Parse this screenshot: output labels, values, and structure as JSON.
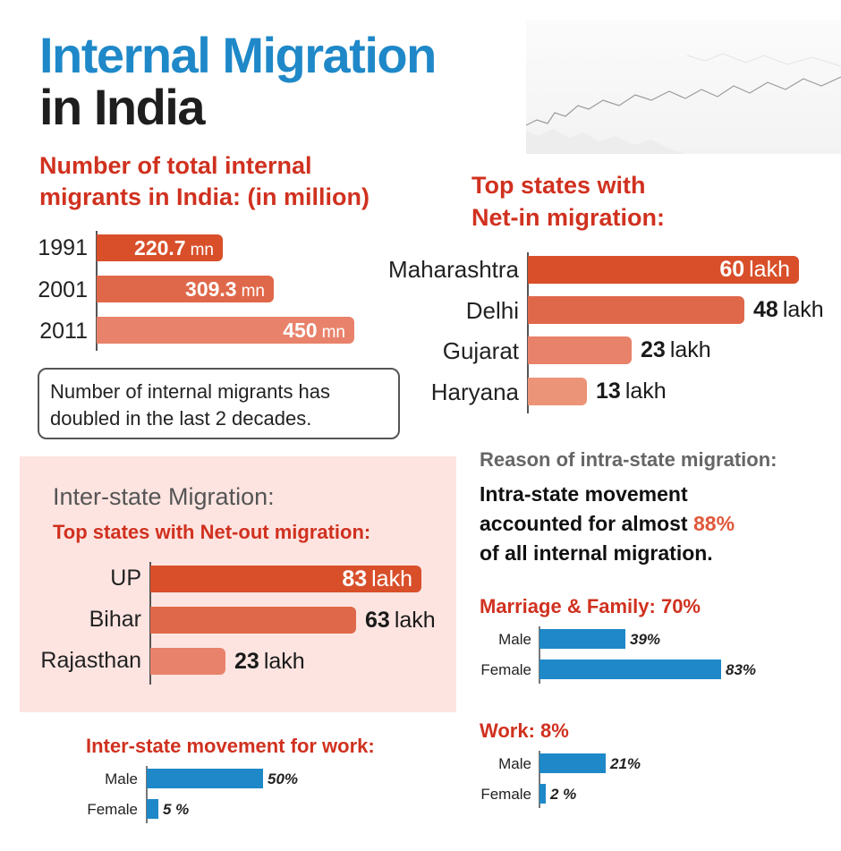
{
  "title_line1": "Internal Migration",
  "title_line2": "in India",
  "total": {
    "heading_line1": "Number of total internal",
    "heading_line2": "migrants in India: (in million)",
    "rows": [
      {
        "year": "1991",
        "value_num": "220.7",
        "unit": "mn",
        "value": 220.7
      },
      {
        "year": "2001",
        "value_num": "309.3",
        "unit": "mn",
        "value": 309.3
      },
      {
        "year": "2011",
        "value_num": "450",
        "unit": "mn",
        "value": 450
      }
    ],
    "note_line1": "Number of internal migrants has",
    "note_line2": "doubled in the last 2 decades."
  },
  "net_in": {
    "heading_line1": "Top states with",
    "heading_line2": "Net-in migration:",
    "rows": [
      {
        "state": "Maharashtra",
        "value_num": "60",
        "unit": "lakh",
        "value": 60
      },
      {
        "state": "Delhi",
        "value_num": "48",
        "unit": "lakh",
        "value": 48
      },
      {
        "state": "Gujarat",
        "value_num": "23",
        "unit": "lakh",
        "value": 23
      },
      {
        "state": "Haryana",
        "value_num": "13",
        "unit": "lakh",
        "value": 13
      }
    ]
  },
  "inter_state": {
    "heading": "Inter-state Migration:",
    "subheading": "Top states with Net-out migration:",
    "rows": [
      {
        "state": "UP",
        "value_num": "83",
        "unit": "lakh",
        "value": 83
      },
      {
        "state": "Bihar",
        "value_num": "63",
        "unit": "lakh",
        "value": 63
      },
      {
        "state": "Rajasthan",
        "value_num": "23",
        "unit": "lakh",
        "value": 23
      }
    ]
  },
  "intra_state": {
    "heading": "Reason of intra-state migration:",
    "text_line1": "Intra-state movement",
    "text_line2_a": "accounted for almost ",
    "text_line2_b": "88%",
    "text_line3": "of all internal migration."
  },
  "marriage": {
    "heading": "Marriage & Family: 70%",
    "rows": [
      {
        "label": "Male",
        "pct_label": "39%",
        "value": 39
      },
      {
        "label": "Female",
        "pct_label": "83%",
        "value": 83
      }
    ]
  },
  "work": {
    "heading": "Work: 8%",
    "rows": [
      {
        "label": "Male",
        "pct_label": "21%",
        "value": 21
      },
      {
        "label": "Female",
        "pct_label": "2 %",
        "value": 2
      }
    ]
  },
  "inter_work": {
    "heading": "Inter-state movement for work:",
    "rows": [
      {
        "label": "Male",
        "pct_label": "50%",
        "value": 50
      },
      {
        "label": "Female",
        "pct_label": "5 %",
        "value": 5
      }
    ]
  },
  "colors": {
    "blue": "#1e88c8",
    "red_heading": "#d0311f",
    "bar_dark": "#d84f2a",
    "bar_mid": "#e0684a",
    "bar_light": "#e8826a",
    "bar_lighter": "#ec9478",
    "pink_panel": "#fde4e1"
  },
  "chart_data": [
    {
      "type": "bar",
      "title": "Number of total internal migrants in India: (in million)",
      "categories": [
        "1991",
        "2001",
        "2011"
      ],
      "values": [
        220.7,
        309.3,
        450
      ],
      "unit": "mn"
    },
    {
      "type": "bar",
      "title": "Top states with Net-in migration:",
      "categories": [
        "Maharashtra",
        "Delhi",
        "Gujarat",
        "Haryana"
      ],
      "values": [
        60,
        48,
        23,
        13
      ],
      "unit": "lakh"
    },
    {
      "type": "bar",
      "title": "Top states with Net-out migration:",
      "categories": [
        "UP",
        "Bihar",
        "Rajasthan"
      ],
      "values": [
        83,
        63,
        23
      ],
      "unit": "lakh"
    },
    {
      "type": "bar",
      "title": "Marriage & Family: 70%",
      "categories": [
        "Male",
        "Female"
      ],
      "values": [
        39,
        83
      ],
      "unit": "%"
    },
    {
      "type": "bar",
      "title": "Work: 8%",
      "categories": [
        "Male",
        "Female"
      ],
      "values": [
        21,
        2
      ],
      "unit": "%"
    },
    {
      "type": "bar",
      "title": "Inter-state movement for work:",
      "categories": [
        "Male",
        "Female"
      ],
      "values": [
        50,
        5
      ],
      "unit": "%"
    }
  ]
}
